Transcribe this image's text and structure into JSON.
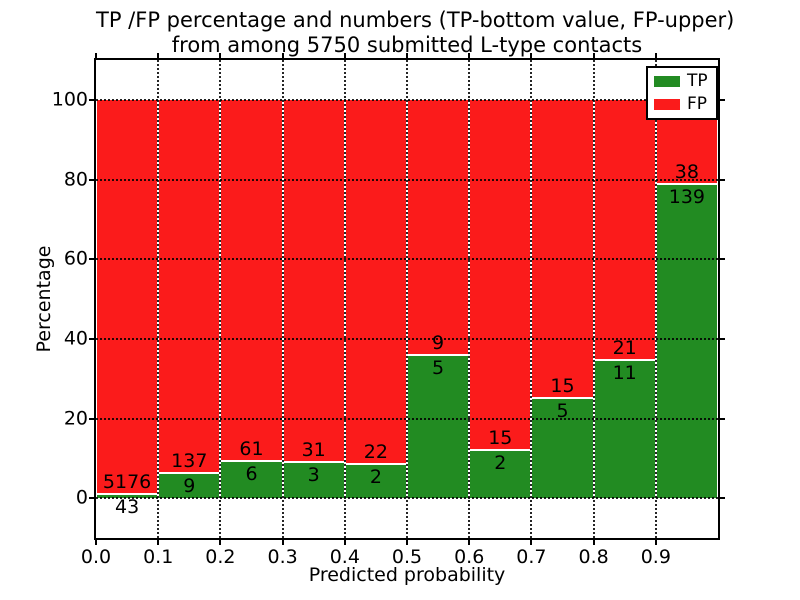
{
  "title": {
    "line1": "TP /FP percentage and numbers (TP-bottom value, FP-upper)",
    "line2": "from among 5750 submitted L-type contacts"
  },
  "chart_data": {
    "type": "bar",
    "stacked": true,
    "normalized": "percent",
    "title": "TP /FP percentage and numbers (TP-bottom value, FP-upper)\nfrom among 5750 submitted L-type contacts",
    "xlabel": "Predicted probability",
    "ylabel": "Percentage",
    "xlim": [
      0.0,
      1.0
    ],
    "ylim": [
      -10,
      110
    ],
    "x_ticks": [
      "0.0",
      "0.1",
      "0.2",
      "0.3",
      "0.4",
      "0.5",
      "0.6",
      "0.7",
      "0.8",
      "0.9"
    ],
    "y_ticks": [
      0,
      20,
      40,
      60,
      80,
      100
    ],
    "grid": "dotted",
    "total_contacts": 5750,
    "series": [
      {
        "name": "TP",
        "color": "#228B22",
        "position": "bottom"
      },
      {
        "name": "FP",
        "color": "#FB1B1B",
        "position": "top"
      }
    ],
    "bins": [
      {
        "range": [
          0.0,
          0.1
        ],
        "tp": 43,
        "fp": 5176
      },
      {
        "range": [
          0.1,
          0.2
        ],
        "tp": 9,
        "fp": 137
      },
      {
        "range": [
          0.2,
          0.3
        ],
        "tp": 6,
        "fp": 61
      },
      {
        "range": [
          0.3,
          0.4
        ],
        "tp": 3,
        "fp": 31
      },
      {
        "range": [
          0.4,
          0.5
        ],
        "tp": 2,
        "fp": 22
      },
      {
        "range": [
          0.5,
          0.6
        ],
        "tp": 5,
        "fp": 9
      },
      {
        "range": [
          0.6,
          0.7
        ],
        "tp": 2,
        "fp": 15
      },
      {
        "range": [
          0.7,
          0.8
        ],
        "tp": 5,
        "fp": 15
      },
      {
        "range": [
          0.8,
          0.9
        ],
        "tp": 11,
        "fp": 21
      },
      {
        "range": [
          0.9,
          1.0
        ],
        "tp": 139,
        "fp": 38
      }
    ],
    "legend": {
      "position": "upper right",
      "entries": [
        {
          "label": "TP",
          "color": "#228B22"
        },
        {
          "label": "FP",
          "color": "#FB1B1B"
        }
      ]
    }
  }
}
